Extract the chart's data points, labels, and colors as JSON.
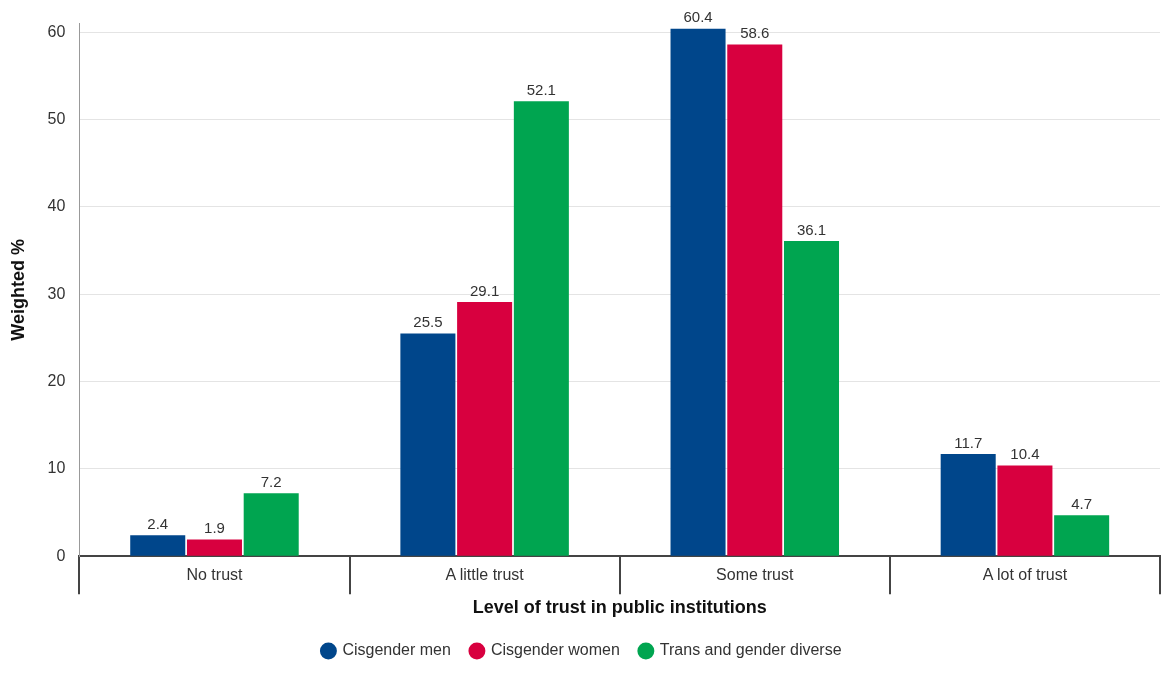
{
  "chart_data": {
    "type": "bar",
    "xlabel": "Level of trust in public institutions",
    "ylabel": "Weighted %",
    "categories": [
      "No trust",
      "A little trust",
      "Some trust",
      "A lot of trust"
    ],
    "series": [
      {
        "name": "Cisgender men",
        "color": "#00468b",
        "values": [
          2.4,
          25.5,
          60.4,
          11.7
        ]
      },
      {
        "name": "Cisgender women",
        "color": "#d8003f",
        "values": [
          1.9,
          29.1,
          58.6,
          10.4
        ]
      },
      {
        "name": "Trans and gender diverse",
        "color": "#00a550",
        "values": [
          7.2,
          52.1,
          36.1,
          4.7
        ]
      }
    ],
    "ylim": [
      0,
      61
    ],
    "yticks": [
      0,
      10,
      20,
      30,
      40,
      50,
      60
    ],
    "grid": "y",
    "legend": "bottom",
    "data_labels": true
  }
}
